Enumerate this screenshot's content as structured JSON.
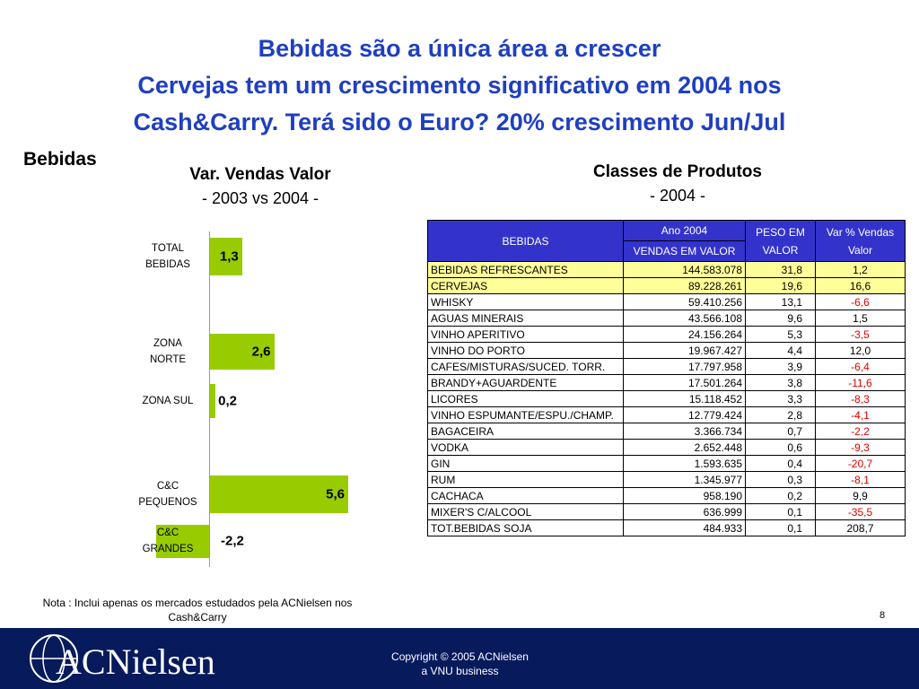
{
  "title": [
    "Bebidas são a única área a crescer",
    "Cervejas tem um crescimento significativo em 2004 nos",
    "Cash&Carry. Terá sido o Euro? 20% crescimento Jun/Jul"
  ],
  "section": "Bebidas",
  "chart_data": {
    "type": "bar",
    "orientation": "horizontal",
    "title": "Var. Vendas Valor",
    "subtitle": "- 2003 vs 2004 -",
    "categories": [
      "TOTAL BEBIDAS",
      "ZONA NORTE",
      "ZONA SUL",
      "C&C PEQUENOS",
      "C&C GRANDES"
    ],
    "values": [
      1.3,
      2.6,
      0.2,
      5.6,
      -2.2
    ],
    "value_labels": [
      "1,3",
      "2,6",
      "0,2",
      "5,6",
      "-2,2"
    ],
    "color": "#99cc00"
  },
  "table": {
    "title": "Classes de Produtos",
    "subtitle": "- 2004 -",
    "header": [
      "BEBIDAS",
      "Ano 2004",
      "VENDAS EM VALOR",
      "PESO EM VALOR",
      "Var % Vendas Valor"
    ],
    "rows": [
      [
        "BEBIDAS REFRESCANTES",
        "144.583.078",
        "31,8",
        "1,2"
      ],
      [
        "CERVEJAS",
        "89.228.261",
        "19,6",
        "16,6"
      ],
      [
        "WHISKY",
        "59.410.256",
        "13,1",
        "-6,6"
      ],
      [
        "AGUAS MINERAIS",
        "43.566.108",
        "9,6",
        "1,5"
      ],
      [
        "VINHO APERITIVO",
        "24.156.264",
        "5,3",
        "-3,5"
      ],
      [
        "VINHO DO PORTO",
        "19.967.427",
        "4,4",
        "12,0"
      ],
      [
        "CAFES/MISTURAS/SUCED. TORR.",
        "17.797.958",
        "3,9",
        "-6,4"
      ],
      [
        "BRANDY+AGUARDENTE",
        "17.501.264",
        "3,8",
        "-11,6"
      ],
      [
        "LICORES",
        "15.118.452",
        "3,3",
        "-8,3"
      ],
      [
        "VINHO ESPUMANTE/ESPU./CHAMP.",
        "12.779.424",
        "2,8",
        "-4,1"
      ],
      [
        "BAGACEIRA",
        "3.366.734",
        "0,7",
        "-2,2"
      ],
      [
        "VODKA",
        "2.652.448",
        "0,6",
        "-9,3"
      ],
      [
        "GIN",
        "1.593.635",
        "0,4",
        "-20,7"
      ],
      [
        "RUM",
        "1.345.977",
        "0,3",
        "-8,1"
      ],
      [
        "CACHACA",
        "958.190",
        "0,2",
        "9,9"
      ],
      [
        "MIXER'S C/ALCOOL",
        "636.999",
        "0,1",
        "-35,5"
      ],
      [
        "TOT.BEBIDAS SOJA",
        "484.933",
        "0,1",
        "208,7"
      ]
    ]
  },
  "note": "Nota : Inclui apenas os mercados estudados pela ACNielsen nos Cash&Carry",
  "page_number": "8",
  "footer": {
    "logo": "ACNielsen",
    "copyright": [
      "Copyright © 2005 ACNielsen",
      "a VNU business"
    ]
  }
}
